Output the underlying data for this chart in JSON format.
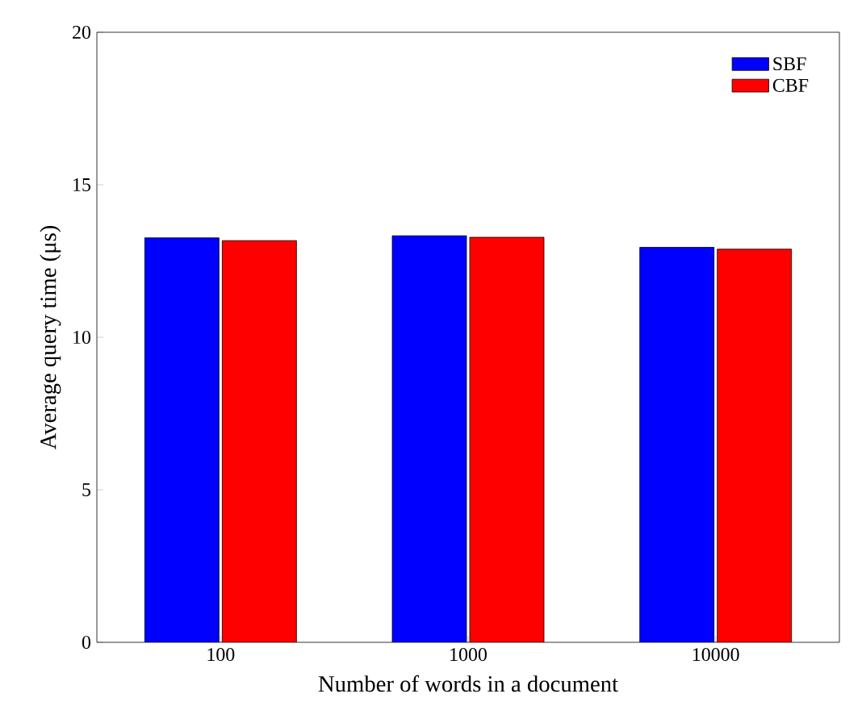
{
  "chart_data": {
    "type": "bar",
    "xlabel": "Number of words in a document",
    "ylabel": "Average query time (μs)",
    "categories": [
      "100",
      "1000",
      "10000"
    ],
    "series": [
      {
        "name": "SBF",
        "color": "#0000ff",
        "values": [
          13.26,
          13.33,
          12.95
        ]
      },
      {
        "name": "CBF",
        "color": "#ff0000",
        "values": [
          13.17,
          13.28,
          12.89
        ]
      }
    ],
    "ylim": [
      0,
      20
    ],
    "yticks": [
      0,
      5,
      10,
      15,
      20
    ],
    "legend": "top right",
    "grid": false
  }
}
